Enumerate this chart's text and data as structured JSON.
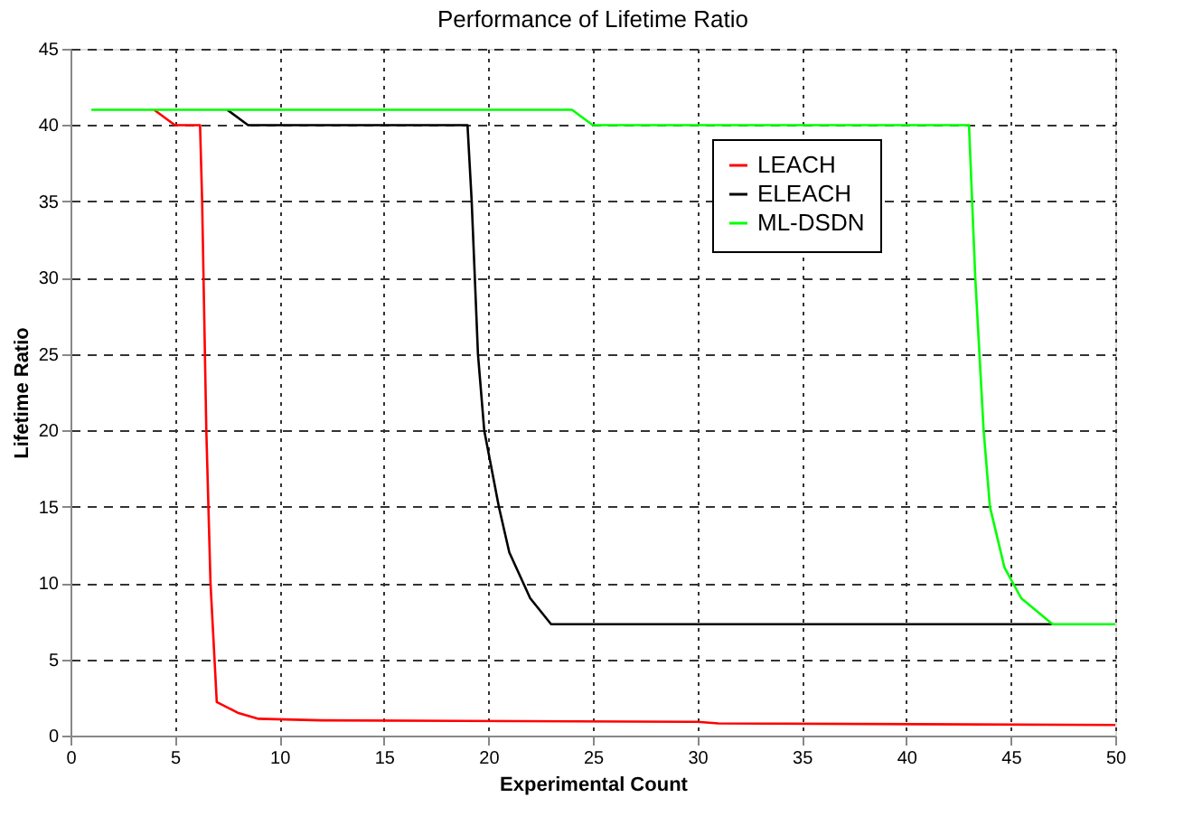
{
  "chart_data": {
    "type": "line",
    "title": "Performance of Lifetime Ratio",
    "xlabel": "Experimental Count",
    "ylabel": "Lifetime Ratio",
    "xlim": [
      0,
      50
    ],
    "xticks": [
      0,
      5,
      10,
      15,
      20,
      25,
      30,
      35,
      40,
      45,
      50
    ],
    "ylim": [
      0,
      45
    ],
    "yticks": [
      0,
      5,
      10,
      15,
      20,
      25,
      30,
      35,
      40,
      45
    ],
    "grid": true,
    "legend": "top right",
    "line_style": "solid",
    "marker": "none",
    "series": [
      {
        "name": "LEACH",
        "color": "#ff0000",
        "x": [
          4,
          5,
          6.2,
          6.3,
          6.5,
          6.7,
          7,
          8,
          9,
          12,
          30,
          31,
          50
        ],
        "values": [
          41,
          40,
          40,
          35,
          20,
          10,
          2.2,
          1.5,
          1.1,
          1.0,
          0.9,
          0.8,
          0.7
        ]
      },
      {
        "name": "ELEACH",
        "color": "#000000",
        "x": [
          7.5,
          8.5,
          19,
          19.2,
          19.5,
          19.8,
          20.5,
          21,
          22,
          23,
          47
        ],
        "values": [
          41,
          40,
          40,
          35,
          25,
          20,
          15,
          12,
          9,
          7.3,
          7.3
        ]
      },
      {
        "name": "ML-DSDN",
        "color": "#00ff00",
        "x": [
          1,
          24,
          25,
          43,
          43.3,
          43.7,
          44,
          44.7,
          45.5,
          47,
          50
        ],
        "values": [
          41,
          41,
          40,
          40,
          30,
          20,
          15,
          11,
          9,
          7.3,
          7.3
        ]
      }
    ]
  }
}
